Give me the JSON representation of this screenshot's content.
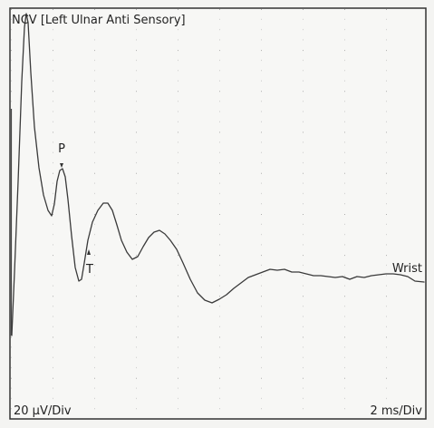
{
  "title": "NCV [Left Ulnar Anti Sensory]",
  "markers": {
    "peak": "P",
    "trough": "T"
  },
  "trace_label": "Wrist",
  "scale": {
    "amplitude": "20 µV/Div",
    "time": "2 ms/Div"
  }
}
